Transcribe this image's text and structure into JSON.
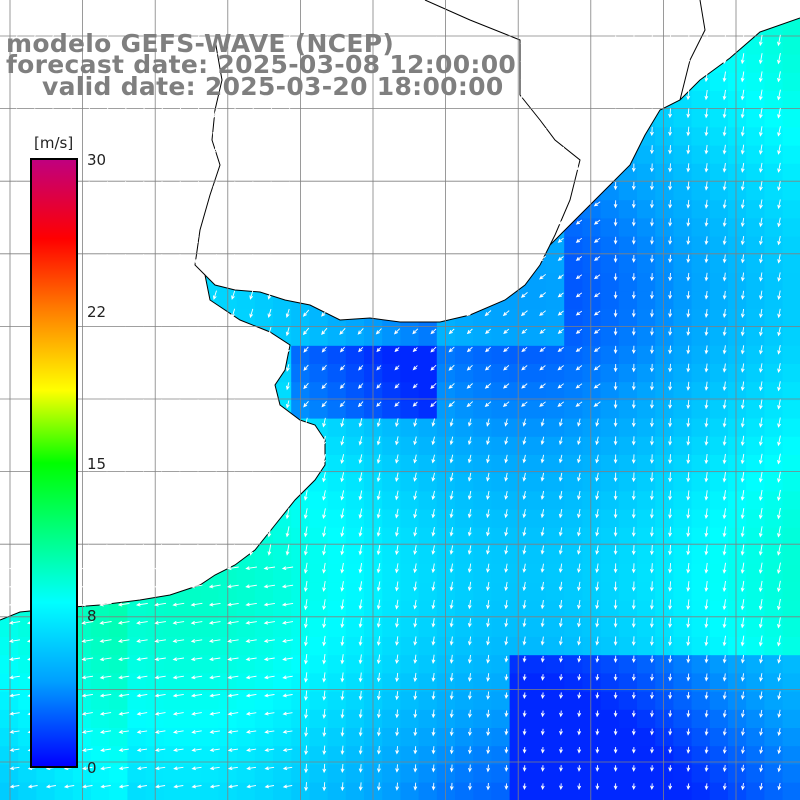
{
  "title": {
    "line1": "modelo GEFS-WAVE (NCEP)",
    "line2": "forecast date: 2025-03-08 12:00:00",
    "line3": "valid date: 2025-03-20 18:00:00"
  },
  "colorbar": {
    "unit": "[m/s]",
    "ticks": [
      "30",
      "22",
      "15",
      "8",
      "0"
    ],
    "tick_values": [
      30,
      22,
      15,
      8,
      0
    ],
    "vmin": 0,
    "vmax": 30,
    "colors": [
      "#0000ff",
      "#00a0ff",
      "#00ffff",
      "#00ff00",
      "#ffff00",
      "#ff8000",
      "#ff0000",
      "#c0007f"
    ]
  },
  "map": {
    "type": "wind field",
    "variable": "wind speed and direction",
    "land_color": "#ffffff",
    "coast_color": "#000000",
    "grid_color": "#808080",
    "arrow_color": "#ffffff"
  }
}
